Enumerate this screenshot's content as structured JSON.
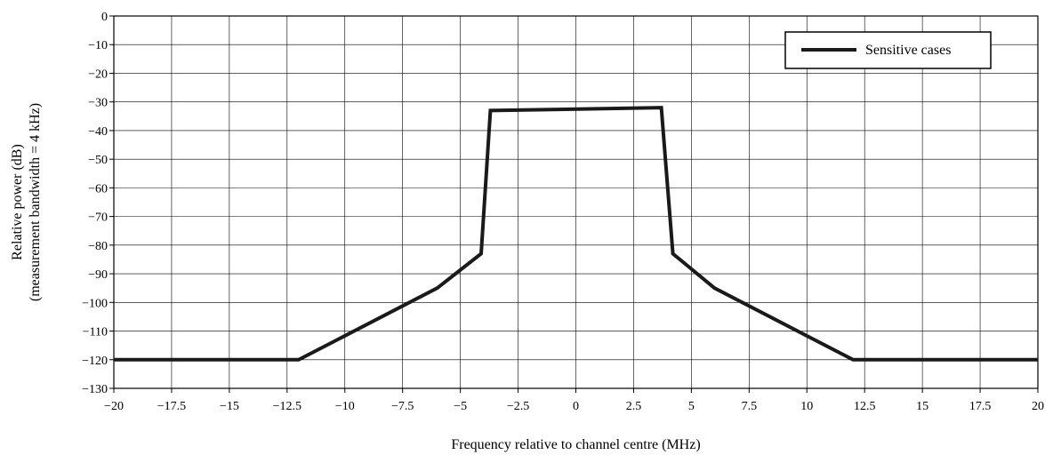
{
  "chart_data": {
    "type": "line",
    "title": "",
    "xlabel": "Frequency relative to channel centre (MHz)",
    "ylabel_line1": "Relative power (dB)",
    "ylabel_line2": "(measurement bandwidth = 4 kHz)",
    "xlim": [
      -20,
      20
    ],
    "ylim": [
      -130,
      0
    ],
    "x_ticks": [
      -20,
      -17.5,
      -15,
      -12.5,
      -10,
      -7.5,
      -5,
      -2.5,
      0,
      2.5,
      5,
      7.5,
      10,
      12.5,
      15,
      17.5,
      20
    ],
    "x_tick_labels": [
      "−20",
      "−17.5",
      "−15",
      "−12.5",
      "−10",
      "−7.5",
      "−5",
      "−2.5",
      "0",
      "2.5",
      "5",
      "7.5",
      "10",
      "12.5",
      "15",
      "17.5",
      "20"
    ],
    "y_ticks": [
      0,
      -10,
      -20,
      -30,
      -40,
      -50,
      -60,
      -70,
      -80,
      -90,
      -100,
      -110,
      -120,
      -130
    ],
    "y_tick_labels": [
      "0",
      "−10",
      "−20",
      "−30",
      "−40",
      "−50",
      "−60",
      "−70",
      "−80",
      "−90",
      "−100",
      "−110",
      "−120",
      "−130"
    ],
    "grid": true,
    "legend_position": "top-right",
    "series": [
      {
        "name": "Sensitive cases",
        "color": "#1a1a1a",
        "x": [
          -20,
          -12,
          -6,
          -4.1,
          -3.7,
          3.7,
          4.2,
          6,
          12,
          20
        ],
        "y": [
          -120,
          -120,
          -95,
          -83,
          -33,
          -32,
          -83,
          -95,
          -120,
          -120
        ]
      }
    ]
  }
}
